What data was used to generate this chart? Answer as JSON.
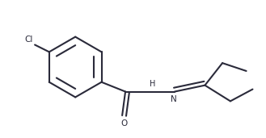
{
  "bg_color": "#ffffff",
  "line_color": "#2a2a3a",
  "line_width": 1.5,
  "figsize": [
    3.29,
    1.71
  ],
  "dpi": 100,
  "Cl_label": "Cl",
  "O_label": "O",
  "NH_label": "H",
  "N_label": "N"
}
